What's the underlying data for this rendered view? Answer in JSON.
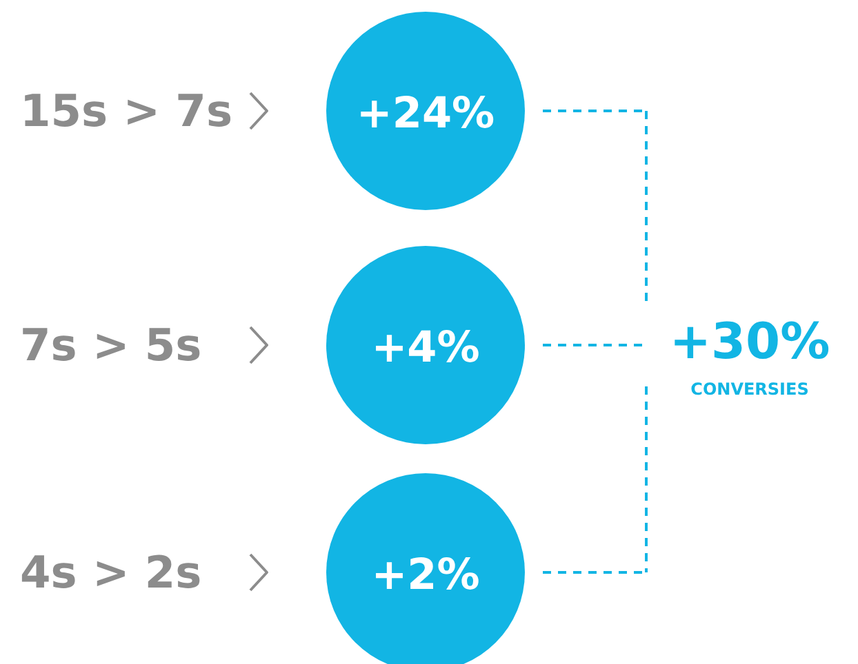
{
  "chart_data": {
    "type": "other",
    "categories": [
      "15s > 7s",
      "7s > 5s",
      "4s > 2s"
    ],
    "values": [
      24,
      4,
      2
    ],
    "value_labels": [
      "+24%",
      "+4%",
      "+2%"
    ],
    "color": "#12b5e4",
    "annotations": [
      "+30%",
      "CONVERSIES"
    ]
  }
}
